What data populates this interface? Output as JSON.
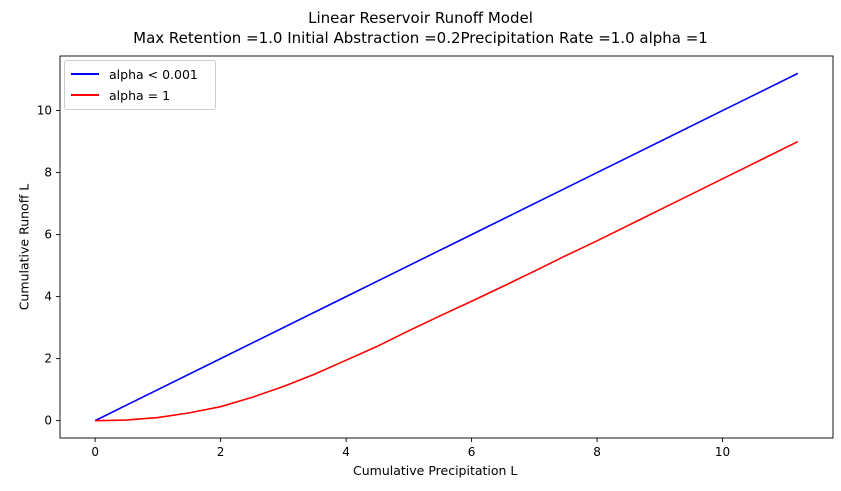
{
  "chart_data": {
    "type": "line",
    "title": "Linear Reservoir Runoff Model",
    "subtitle": "Max Retention =1.0 Initial Abstraction =0.2Precipitation Rate =1.0 alpha =1",
    "xlabel": "Cumulative Precipitation L",
    "ylabel": "Cumulative Runoff L",
    "xlim": [
      -0.56,
      11.76
    ],
    "ylim": [
      -0.56,
      11.76
    ],
    "xticks": [
      0,
      2,
      4,
      6,
      8,
      10
    ],
    "yticks": [
      0,
      2,
      4,
      6,
      8,
      10
    ],
    "grid": false,
    "legend": "top-left",
    "series": [
      {
        "name": "alpha < 0.001",
        "color": "#0000ff",
        "x": [
          0,
          2,
          4,
          6,
          8,
          10,
          11.2
        ],
        "y": [
          0,
          2,
          4,
          6,
          8,
          10,
          11.2
        ]
      },
      {
        "name": "alpha = 1",
        "color": "#ff0000",
        "x": [
          0,
          0.5,
          1,
          1.5,
          2,
          2.5,
          3,
          3.5,
          4,
          4.5,
          5,
          5.5,
          6,
          6.5,
          7,
          7.5,
          8,
          8.5,
          9,
          9.5,
          10,
          10.5,
          11,
          11.2
        ],
        "y": [
          0,
          0.02,
          0.1,
          0.25,
          0.45,
          0.75,
          1.1,
          1.5,
          1.95,
          2.4,
          2.9,
          3.38,
          3.85,
          4.33,
          4.82,
          5.32,
          5.8,
          6.3,
          6.8,
          7.3,
          7.8,
          8.3,
          8.8,
          9.0
        ]
      }
    ]
  }
}
